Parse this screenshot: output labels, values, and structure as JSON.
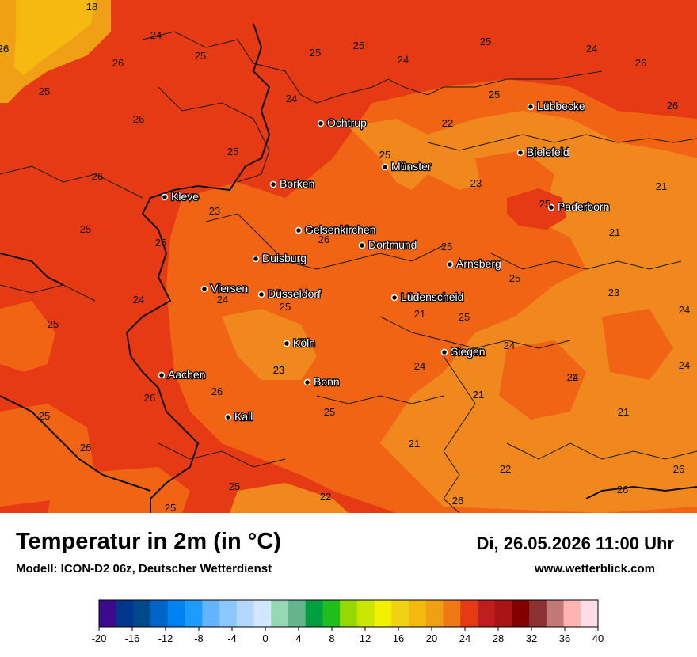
{
  "title": "Temperatur in 2m (in °C)",
  "model": "Modell: ICON-D2 06z, Deutscher Wetterdienst",
  "datetime": "Di, 26.05.2026 11:00 Uhr",
  "website": "www.wetterblick.com",
  "colors": {
    "t26": "#e63a14",
    "t24": "#f06414",
    "t22": "#f0881e",
    "t18": "#f5b90f",
    "border": "#1a1a1a"
  },
  "cities": [
    {
      "name": "Ochtrup"
    },
    {
      "name": "Lübbecke"
    },
    {
      "name": "Bielefeld"
    },
    {
      "name": "Münster"
    },
    {
      "name": "Borken"
    },
    {
      "name": "Kleve"
    },
    {
      "name": "Paderborn"
    },
    {
      "name": "Gelsenkirchen"
    },
    {
      "name": "Dortmund"
    },
    {
      "name": "Duisburg"
    },
    {
      "name": "Arnsberg"
    },
    {
      "name": "Viersen"
    },
    {
      "name": "Düsseldorf"
    },
    {
      "name": "Lüdenscheid"
    },
    {
      "name": "Köln"
    },
    {
      "name": "Siegen"
    },
    {
      "name": "Aachen"
    },
    {
      "name": "Bonn"
    },
    {
      "name": "Kall"
    }
  ],
  "values": [
    "18",
    "24",
    "26",
    "25",
    "25",
    "25",
    "24",
    "26",
    "24",
    "25",
    "26",
    "25",
    "26",
    "24",
    "22",
    "26",
    "25",
    "25",
    "23",
    "21",
    "26",
    "21",
    "23",
    "25",
    "25",
    "25",
    "25",
    "26",
    "24",
    "25",
    "24",
    "23",
    "24",
    "24",
    "25",
    "21",
    "25",
    "24",
    "25",
    "24",
    "23",
    "21",
    "24",
    "22",
    "26",
    "26",
    "21",
    "25",
    "25",
    "23",
    "22",
    "26",
    "21",
    "25",
    "22",
    "21",
    "26",
    "25",
    "26",
    "26",
    "25",
    "22",
    "26",
    "25"
  ],
  "legend": {
    "colors": [
      "#3c0a8c",
      "#00378c",
      "#004a8c",
      "#0064c8",
      "#0082f0",
      "#1e9bff",
      "#64b4ff",
      "#8cc8ff",
      "#b4d7ff",
      "#d2e6ff",
      "#96d7b4",
      "#64b48c",
      "#00a040",
      "#1ebe1e",
      "#96d700",
      "#c8e600",
      "#f0f000",
      "#f0d214",
      "#f5b90f",
      "#f0a014",
      "#f07814",
      "#e63a14",
      "#be1e1e",
      "#aa1414",
      "#820000",
      "#8c3232",
      "#c37878",
      "#ffb4b4",
      "#ffdce6"
    ],
    "ticks": [
      "-20",
      "-16",
      "-12",
      "-8",
      "-4",
      "0",
      "4",
      "8",
      "12",
      "16",
      "20",
      "24",
      "28",
      "32",
      "36",
      "40"
    ]
  }
}
